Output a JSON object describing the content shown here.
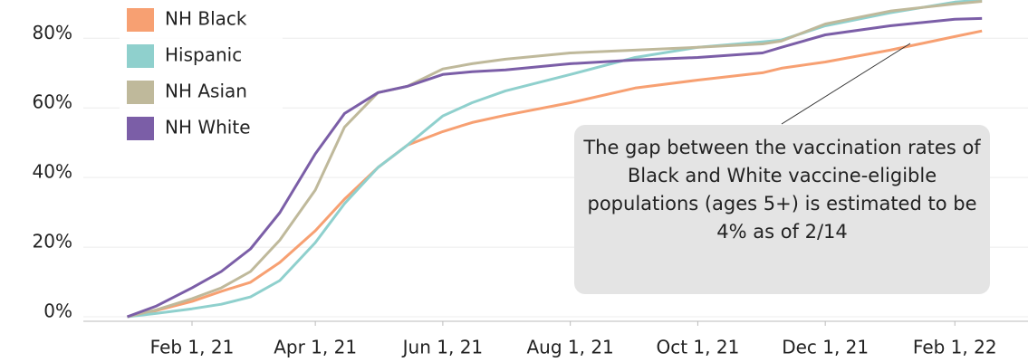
{
  "chart_data": {
    "type": "line",
    "x": [
      "2021-01-01",
      "2021-01-15",
      "2021-02-01",
      "2021-02-15",
      "2021-03-01",
      "2021-03-15",
      "2021-04-01",
      "2021-04-15",
      "2021-05-01",
      "2021-05-15",
      "2021-06-01",
      "2021-06-15",
      "2021-07-01",
      "2021-08-01",
      "2021-09-01",
      "2021-10-01",
      "2021-11-01",
      "2021-11-10",
      "2021-12-01",
      "2022-01-01",
      "2022-02-01",
      "2022-02-14"
    ],
    "series": [
      {
        "name": "NH Black",
        "color": "#f7a072",
        "values": [
          0,
          1.8,
          4.4,
          7.3,
          9.9,
          15.6,
          24.7,
          33.8,
          42.9,
          49.3,
          53.2,
          55.8,
          57.9,
          61.5,
          65.7,
          68,
          70.1,
          71.4,
          73.2,
          76.6,
          80.5,
          82.1
        ]
      },
      {
        "name": "Hispanic",
        "color": "#8fd0cd",
        "values": [
          0,
          1,
          2.3,
          3.6,
          5.7,
          10.4,
          21.3,
          32.5,
          42.9,
          49.3,
          57.7,
          61.5,
          64.9,
          69.6,
          74.5,
          77.4,
          79,
          79.5,
          83.6,
          87.3,
          90.4,
          91
        ]
      },
      {
        "name": "NH Asian",
        "color": "#bfb99b",
        "values": [
          0,
          2,
          5.2,
          8.3,
          13,
          22,
          36.4,
          54.5,
          64.4,
          66.2,
          71.2,
          72.7,
          74,
          75.8,
          76.6,
          77.4,
          78.4,
          79.2,
          84.1,
          87.8,
          89.9,
          90.6
        ]
      },
      {
        "name": "NH White",
        "color": "#7b5ea7",
        "values": [
          0,
          3.1,
          8.3,
          13,
          19.5,
          29.9,
          46.8,
          58.4,
          64.4,
          66.2,
          69.6,
          70.4,
          70.9,
          72.7,
          73.8,
          74.5,
          75.8,
          77.4,
          81,
          83.6,
          85.5,
          85.7
        ]
      }
    ],
    "xlim": [
      "2020-12-11",
      "2022-03-08"
    ],
    "xticks": [
      {
        "value": "2021-02-01",
        "label": "Feb 1, 21"
      },
      {
        "value": "2021-04-01",
        "label": "Apr 1, 21"
      },
      {
        "value": "2021-06-01",
        "label": "Jun 1, 21"
      },
      {
        "value": "2021-08-01",
        "label": "Aug 1, 21"
      },
      {
        "value": "2021-10-01",
        "label": "Oct 1, 21"
      },
      {
        "value": "2021-12-01",
        "label": "Dec 1, 21"
      },
      {
        "value": "2022-02-01",
        "label": "Feb 1, 22"
      }
    ],
    "ylim": [
      -1.3,
      91
    ],
    "yticks": [
      {
        "value": 0,
        "label": "0%"
      },
      {
        "value": 20,
        "label": "20%"
      },
      {
        "value": 40,
        "label": "40%"
      },
      {
        "value": 60,
        "label": "60%"
      },
      {
        "value": 80,
        "label": "80%"
      }
    ],
    "grid": true,
    "legend": "upper left",
    "annotation": "The gap between the vaccination rates of Black and White vaccine-eligible populations (ages 5+) is estimated to be 4% as of 2/14"
  }
}
